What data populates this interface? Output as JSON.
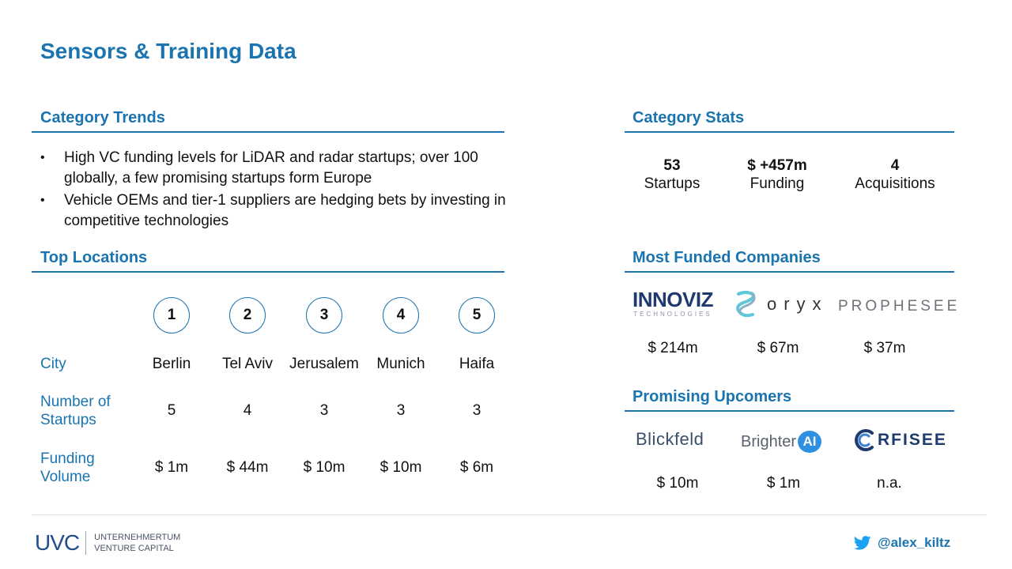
{
  "title": "Sensors & Training Data",
  "category_trends": {
    "heading": "Category Trends",
    "bullets": [
      "High VC funding levels for LiDAR and radar startups; over 100 globally, a few promising startups form Europe",
      "Vehicle OEMs and tier-1 suppliers are hedging bets by investing in competitive technologies"
    ]
  },
  "category_stats": {
    "heading": "Category Stats",
    "items": [
      {
        "value": "53",
        "label": "Startups"
      },
      {
        "value": "$ +457m",
        "label": "Funding"
      },
      {
        "value": "4",
        "label": "Acquisitions"
      }
    ]
  },
  "top_locations": {
    "heading": "Top Locations",
    "ranks": [
      "1",
      "2",
      "3",
      "4",
      "5"
    ],
    "row_labels": {
      "city": "City",
      "startups": "Number of Startups",
      "funding": "Funding Volume"
    },
    "cities": [
      "Berlin",
      "Tel Aviv",
      "Jerusalem",
      "Munich",
      "Haifa"
    ],
    "startups": [
      "5",
      "4",
      "3",
      "3",
      "3"
    ],
    "funding": [
      "$ 1m",
      "$ 44m",
      "$ 10m",
      "$ 10m",
      "$ 6m"
    ]
  },
  "most_funded": {
    "heading": "Most Funded Companies",
    "companies": [
      {
        "logo_text": "INNOVIZ",
        "logo_sub": "TECHNOLOGIES",
        "amount": "$ 214m"
      },
      {
        "logo_text": "oryx",
        "amount": "$ 67m"
      },
      {
        "logo_text": "PROPHESEE",
        "amount": "$ 37m"
      }
    ]
  },
  "promising_upcomers": {
    "heading": "Promising Upcomers",
    "companies": [
      {
        "logo_text": "Blickfeld",
        "amount": "$ 10m"
      },
      {
        "logo_text": "Brighter",
        "logo_badge": "AI",
        "amount": "$ 1m"
      },
      {
        "logo_text": "RFISEE",
        "amount": "n.a."
      }
    ]
  },
  "footer": {
    "logo_mark": "UVC",
    "logo_line1": "UNTERNEHMERTUM",
    "logo_line2": "VENTURE CAPITAL",
    "twitter_handle": "@alex_kiltz"
  },
  "colors": {
    "accent": "#1a74b0",
    "twitter": "#1da1f2",
    "innoviz_navy": "#1f3a6e"
  },
  "icons": [
    "twitter-icon",
    "oryx-logo-mark",
    "rfisee-logo-mark"
  ]
}
